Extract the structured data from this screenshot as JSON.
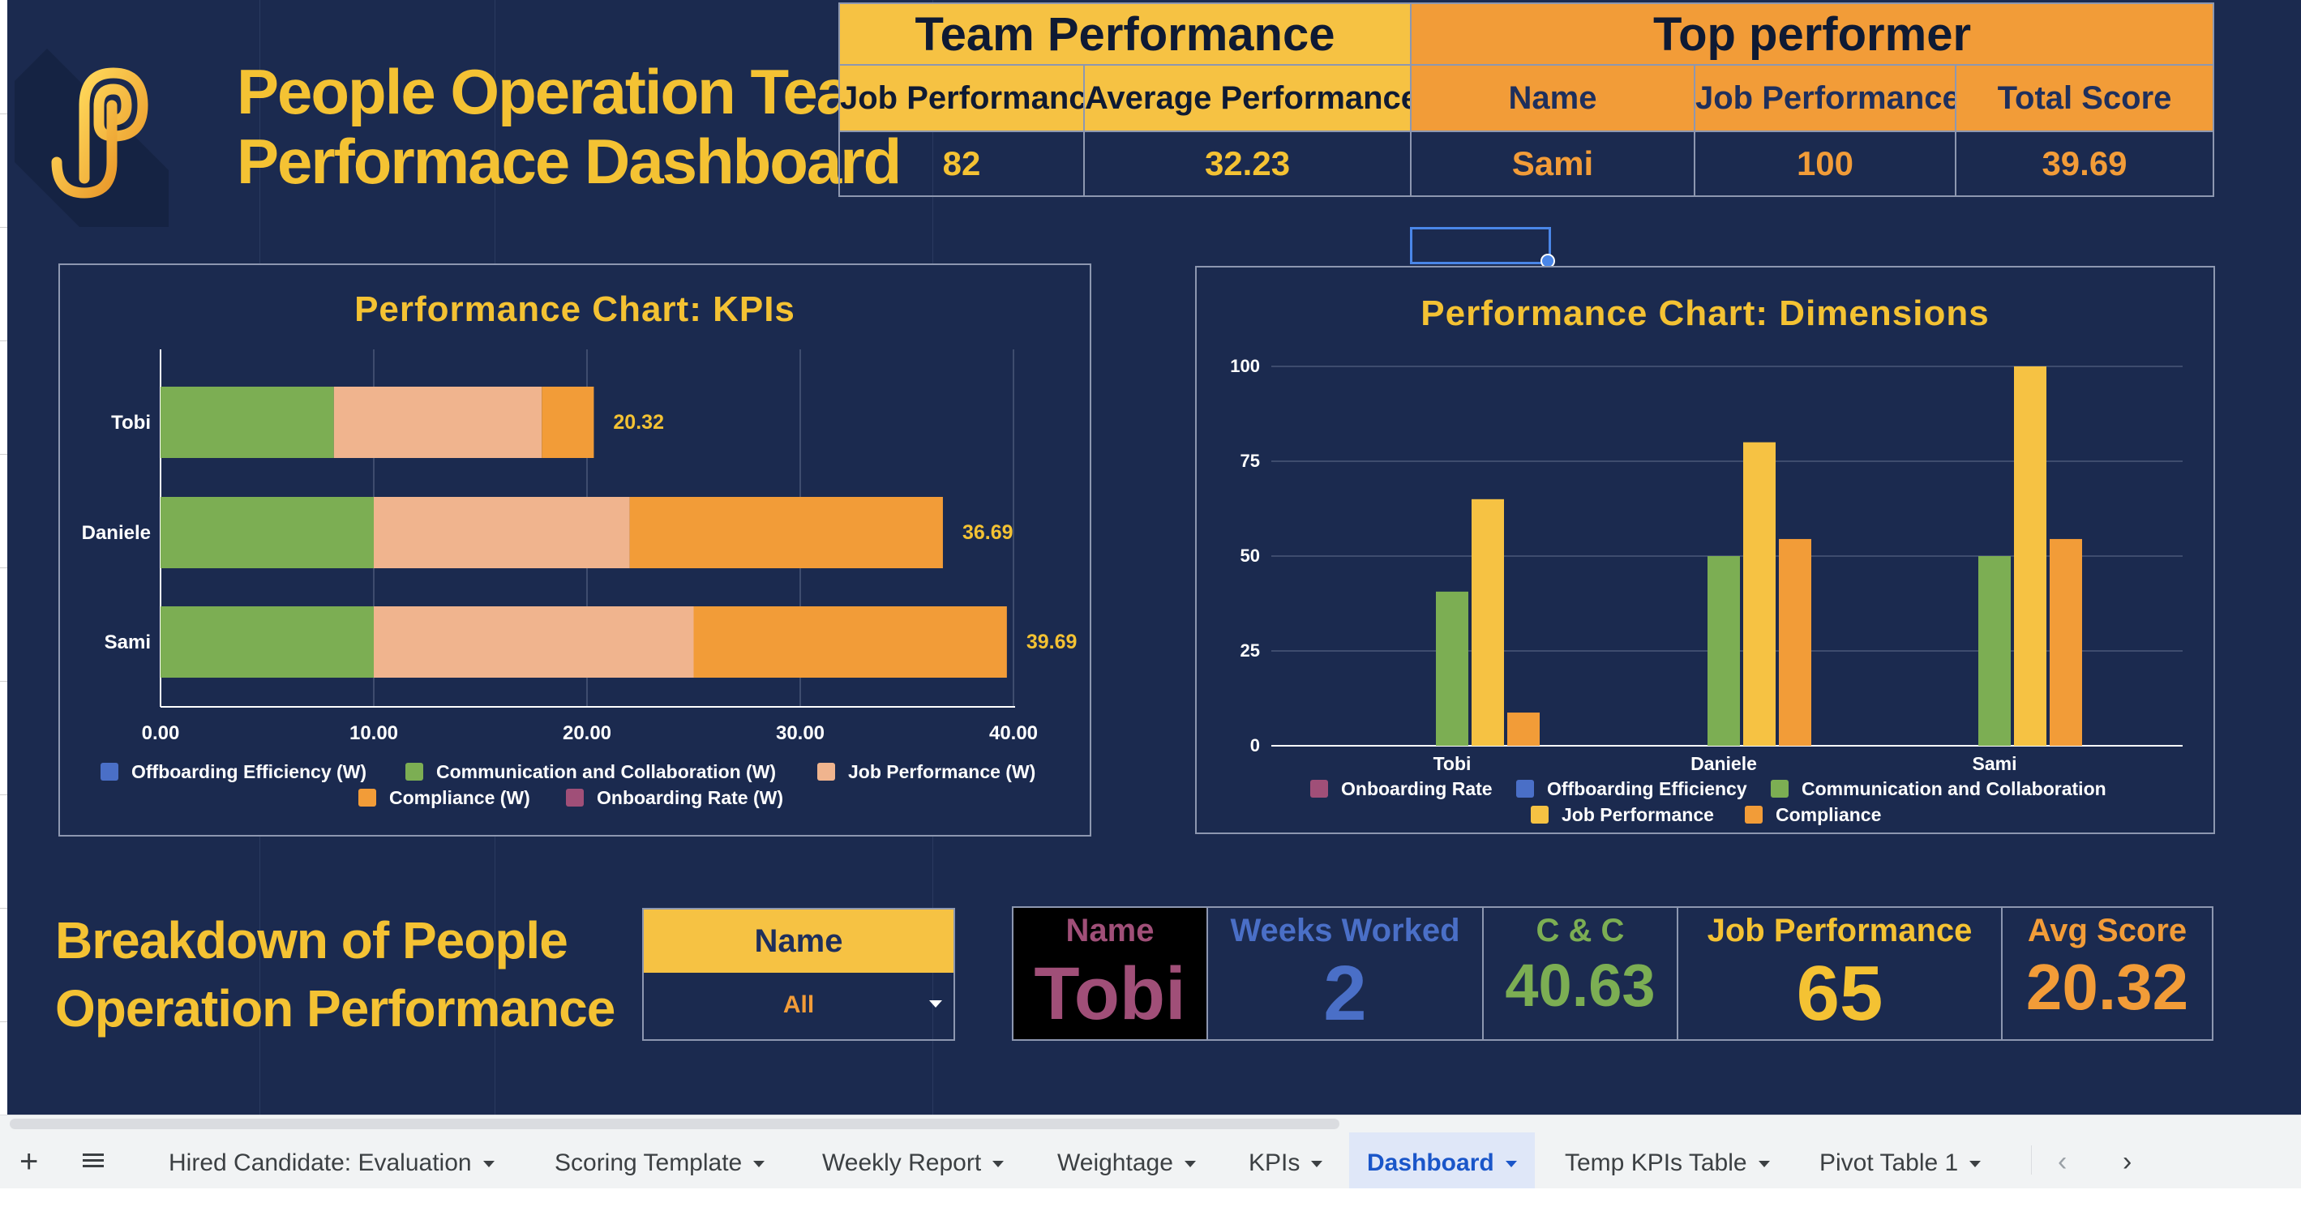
{
  "header": {
    "title_line1": "People Operation Team:",
    "title_line2": "Performace Dashboard",
    "team_performance": {
      "heading": "Team Performance",
      "col1": "Job Performance",
      "col2": "Average Performance",
      "val1": "82",
      "val2": "32.23"
    },
    "top_performer": {
      "heading": "Top performer",
      "col1": "Name",
      "col2": "Job Performance",
      "col3": "Total Score",
      "val1": "Sami",
      "val2": "100",
      "val3": "39.69"
    }
  },
  "colors": {
    "background": "#1b2a4f",
    "yellow": "#f4c233",
    "orange": "#f29c38",
    "green": "#7cae53",
    "peach": "#f0b48e",
    "blue": "#4a6fc7",
    "purple": "#a04f78"
  },
  "chart_data": [
    {
      "type": "bar",
      "orientation": "horizontal",
      "stacked": true,
      "title": "Performance Chart: KPIs",
      "categories": [
        "Tobi",
        "Daniele",
        "Sami"
      ],
      "series": [
        {
          "name": "Offboarding Efficiency (W)",
          "color": "#4a6fc7",
          "values": [
            0,
            0,
            0
          ]
        },
        {
          "name": "Communication and Collaboration (W)",
          "color": "#7cae53",
          "values": [
            8.13,
            10,
            10
          ]
        },
        {
          "name": "Job Performance (W)",
          "color": "#f0b48e",
          "values": [
            9.75,
            12,
            15
          ]
        },
        {
          "name": "Compliance (W)",
          "color": "#f29c38",
          "values": [
            2.44,
            14.69,
            14.69
          ]
        },
        {
          "name": "Onboarding Rate (W)",
          "color": "#a04f78",
          "values": [
            0,
            0,
            0
          ]
        }
      ],
      "totals": [
        "20.32",
        "36.69",
        "39.69"
      ],
      "x_ticks": [
        "0.00",
        "10.00",
        "20.00",
        "30.00",
        "40.00"
      ],
      "xlim": [
        0,
        40
      ],
      "legend_position": "bottom",
      "grid": true
    },
    {
      "type": "bar",
      "orientation": "vertical",
      "title": "Performance Chart: Dimensions",
      "categories": [
        "Tobi",
        "Daniele",
        "Sami"
      ],
      "series": [
        {
          "name": "Onboarding Rate",
          "color": "#a04f78",
          "values": [
            0,
            0,
            0
          ]
        },
        {
          "name": "Offboarding Efficiency",
          "color": "#4a6fc7",
          "values": [
            0,
            0,
            0
          ]
        },
        {
          "name": "Communication and Collaboration",
          "color": "#7cae53",
          "values": [
            40.63,
            50,
            50
          ]
        },
        {
          "name": "Job Performance",
          "color": "#f6c243",
          "values": [
            65,
            80,
            100
          ]
        },
        {
          "name": "Compliance",
          "color": "#f29c38",
          "values": [
            8.75,
            54.5,
            54.5
          ]
        }
      ],
      "y_ticks": [
        "0",
        "25",
        "50",
        "75",
        "100"
      ],
      "ylim": [
        0,
        100
      ],
      "legend_position": "bottom",
      "grid": true
    }
  ],
  "breakdown": {
    "title_line1": "Breakdown of People",
    "title_line2": "Operation Performance",
    "filter_label": "Name",
    "filter_value": "All",
    "stats": {
      "name_label": "Name",
      "name_value": "Tobi",
      "weeks_label": "Weeks Worked",
      "weeks_value": "2",
      "cc_label": "C & C",
      "cc_value": "40.63",
      "jp_label": "Job Performance",
      "jp_value": "65",
      "avg_label": "Avg Score",
      "avg_value": "20.32"
    }
  },
  "tabs": [
    "Hired Candidate: Evaluation",
    "Scoring Template",
    "Weekly Report",
    "Weightage",
    "KPIs",
    "Dashboard",
    "Temp KPIs Table",
    "Pivot Table 1"
  ],
  "active_tab": "Dashboard",
  "icons": {
    "add_sheet": "plus-icon",
    "all_sheets": "menu-icon",
    "prev": "chevron-left-icon",
    "next": "chevron-right-icon"
  }
}
